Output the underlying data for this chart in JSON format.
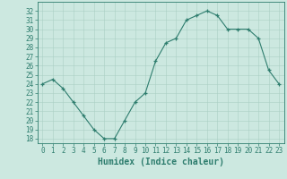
{
  "x": [
    0,
    1,
    2,
    3,
    4,
    5,
    6,
    7,
    8,
    9,
    10,
    11,
    12,
    13,
    14,
    15,
    16,
    17,
    18,
    19,
    20,
    21,
    22,
    23
  ],
  "y": [
    24.0,
    24.5,
    23.5,
    22.0,
    20.5,
    19.0,
    18.0,
    18.0,
    20.0,
    22.0,
    23.0,
    26.5,
    28.5,
    29.0,
    31.0,
    31.5,
    32.0,
    31.5,
    30.0,
    30.0,
    30.0,
    29.0,
    25.5,
    24.0
  ],
  "xlabel": "Humidex (Indice chaleur)",
  "xlim": [
    -0.5,
    23.5
  ],
  "ylim": [
    17.5,
    33.0
  ],
  "yticks": [
    18,
    19,
    20,
    21,
    22,
    23,
    24,
    25,
    26,
    27,
    28,
    29,
    30,
    31,
    32
  ],
  "xticks": [
    0,
    1,
    2,
    3,
    4,
    5,
    6,
    7,
    8,
    9,
    10,
    11,
    12,
    13,
    14,
    15,
    16,
    17,
    18,
    19,
    20,
    21,
    22,
    23
  ],
  "xtick_labels": [
    "0",
    "1",
    "2",
    "3",
    "4",
    "5",
    "6",
    "7",
    "8",
    "9",
    "10",
    "11",
    "12",
    "13",
    "14",
    "15",
    "16",
    "17",
    "18",
    "19",
    "20",
    "21",
    "22",
    "23"
  ],
  "line_color": "#2e7d6e",
  "marker": "+",
  "bg_color": "#cce8e0",
  "grid_color": "#aacfc5",
  "axis_color": "#2e7d6e",
  "tick_fontsize": 5.5,
  "xlabel_fontsize": 7.0
}
